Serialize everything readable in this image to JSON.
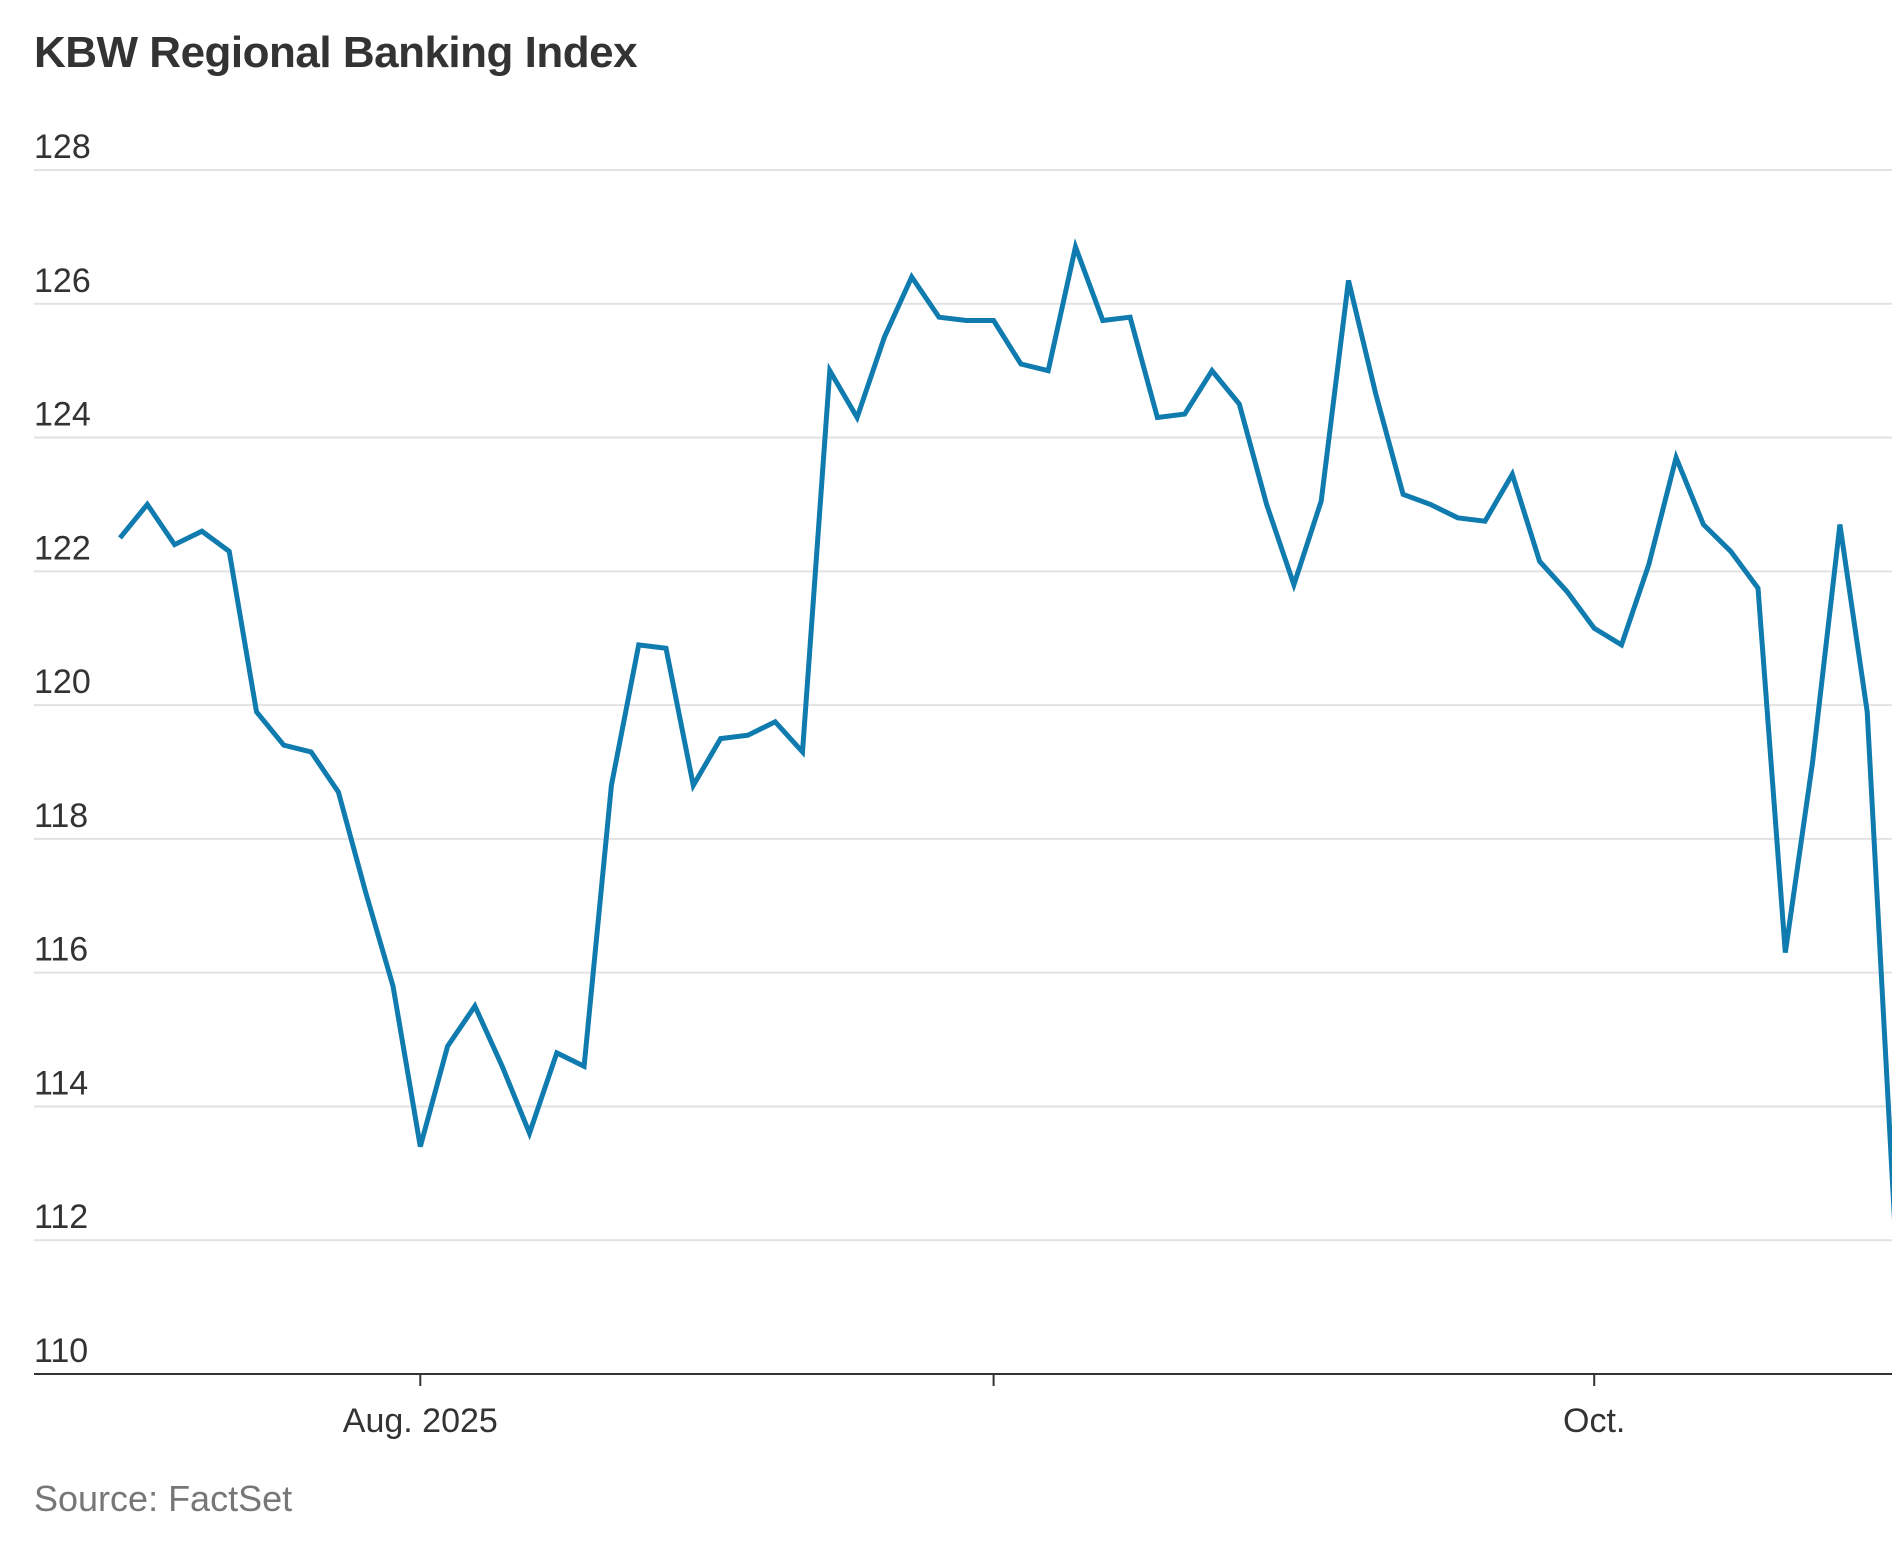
{
  "chart_data": {
    "type": "line",
    "title": "KBW Regional Banking Index",
    "source": "Source: FactSet",
    "xlabel": "",
    "ylabel": "",
    "ylim": [
      110,
      128
    ],
    "yticks": [
      "110",
      "112",
      "114",
      "116",
      "118",
      "120",
      "122",
      "124",
      "126",
      "128"
    ],
    "xticks": [
      {
        "label": "Aug. 2025",
        "index": 11
      },
      {
        "label": "",
        "index": 32
      },
      {
        "label": "Oct.",
        "index": 54
      }
    ],
    "grid": true,
    "colors": {
      "line": "#0f7bae",
      "grid": "#e2e2e2",
      "axis": "#333333"
    },
    "series": [
      {
        "values": [
          122.5,
          123.0,
          122.4,
          122.6,
          122.3,
          119.9,
          119.4,
          119.3,
          118.7,
          117.2,
          115.8,
          113.4,
          114.9,
          115.5,
          114.6,
          113.6,
          114.8,
          114.6,
          118.8,
          120.9,
          120.85,
          118.8,
          119.5,
          119.55,
          119.75,
          119.3,
          125.0,
          124.3,
          125.5,
          126.4,
          125.8,
          125.75,
          125.75,
          125.1,
          125.0,
          126.85,
          125.75,
          125.8,
          124.3,
          124.35,
          125.0,
          124.5,
          123.0,
          121.8,
          123.05,
          126.35,
          124.65,
          123.15,
          123.0,
          122.8,
          122.75,
          123.45,
          122.15,
          121.7,
          121.15,
          120.9,
          122.1,
          123.7,
          122.7,
          122.3,
          121.75,
          116.3,
          119.15,
          122.7,
          119.9,
          112.3
        ]
      }
    ]
  }
}
